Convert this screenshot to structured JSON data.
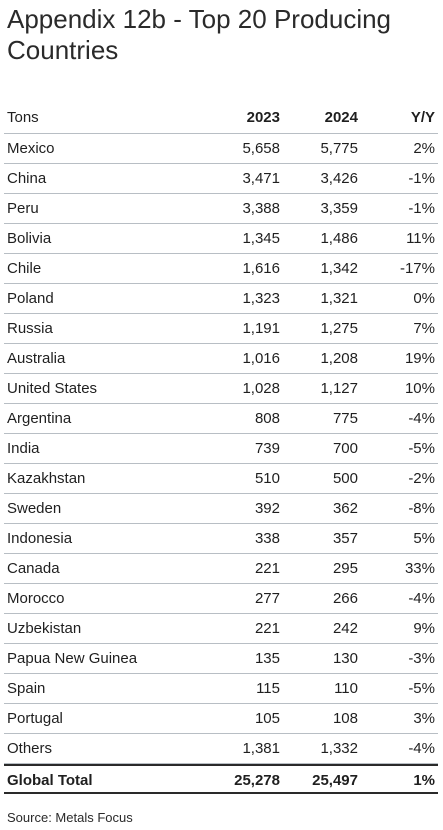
{
  "title": "Appendix 12b - Top 20 Producing Countries",
  "header": {
    "unit": "Tons",
    "col_2023": "2023",
    "col_2024": "2024",
    "col_yy": "Y/Y"
  },
  "rows": [
    {
      "country": "Mexico",
      "v2023": "5,658",
      "v2024": "5,775",
      "yy": "2%"
    },
    {
      "country": "China",
      "v2023": "3,471",
      "v2024": "3,426",
      "yy": "-1%"
    },
    {
      "country": "Peru",
      "v2023": "3,388",
      "v2024": "3,359",
      "yy": "-1%"
    },
    {
      "country": "Bolivia",
      "v2023": "1,345",
      "v2024": "1,486",
      "yy": "11%"
    },
    {
      "country": "Chile",
      "v2023": "1,616",
      "v2024": "1,342",
      "yy": "-17%"
    },
    {
      "country": "Poland",
      "v2023": "1,323",
      "v2024": "1,321",
      "yy": "0%"
    },
    {
      "country": "Russia",
      "v2023": "1,191",
      "v2024": "1,275",
      "yy": "7%"
    },
    {
      "country": "Australia",
      "v2023": "1,016",
      "v2024": "1,208",
      "yy": "19%"
    },
    {
      "country": "United States",
      "v2023": "1,028",
      "v2024": "1,127",
      "yy": "10%"
    },
    {
      "country": "Argentina",
      "v2023": "808",
      "v2024": "775",
      "yy": "-4%"
    },
    {
      "country": "India",
      "v2023": "739",
      "v2024": "700",
      "yy": "-5%"
    },
    {
      "country": "Kazakhstan",
      "v2023": "510",
      "v2024": "500",
      "yy": "-2%"
    },
    {
      "country": "Sweden",
      "v2023": "392",
      "v2024": "362",
      "yy": "-8%"
    },
    {
      "country": "Indonesia",
      "v2023": "338",
      "v2024": "357",
      "yy": "5%"
    },
    {
      "country": "Canada",
      "v2023": "221",
      "v2024": "295",
      "yy": "33%"
    },
    {
      "country": "Morocco",
      "v2023": "277",
      "v2024": "266",
      "yy": "-4%"
    },
    {
      "country": "Uzbekistan",
      "v2023": "221",
      "v2024": "242",
      "yy": "9%"
    },
    {
      "country": "Papua New Guinea",
      "v2023": "135",
      "v2024": "130",
      "yy": "-3%"
    },
    {
      "country": "Spain",
      "v2023": "115",
      "v2024": "110",
      "yy": "-5%"
    },
    {
      "country": "Portugal",
      "v2023": "105",
      "v2024": "108",
      "yy": "3%"
    },
    {
      "country": "Others",
      "v2023": "1,381",
      "v2024": "1,332",
      "yy": "-4%"
    }
  ],
  "total": {
    "label": "Global Total",
    "v2023": "25,278",
    "v2024": "25,497",
    "yy": "1%"
  },
  "source": "Source: Metals Focus"
}
